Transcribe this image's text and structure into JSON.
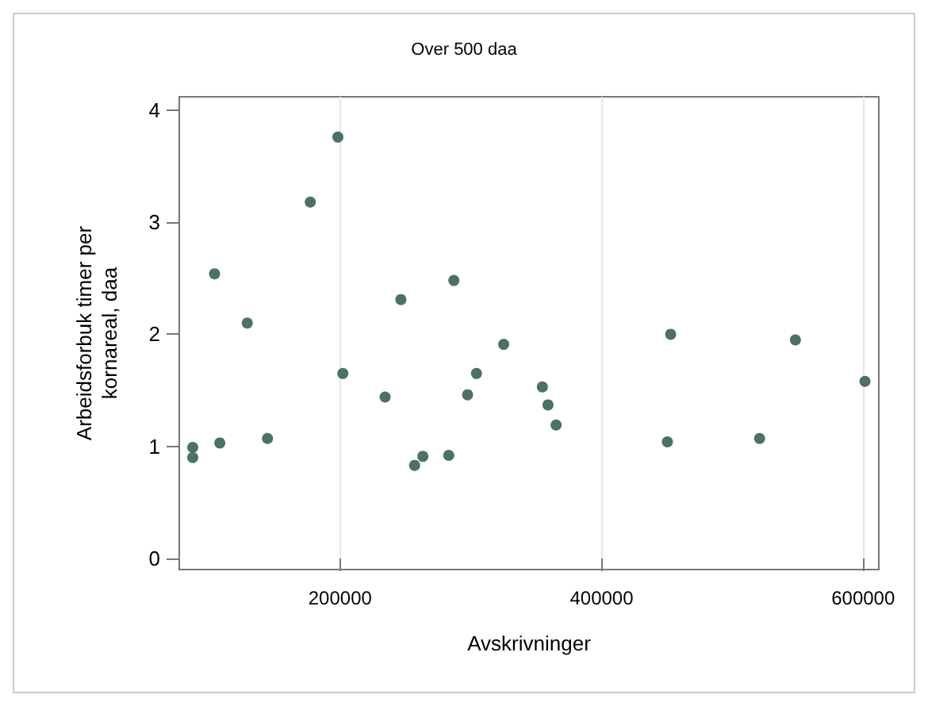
{
  "chart_data": {
    "type": "scatter",
    "title": "Over 500 daa",
    "xlabel": "Avskrivninger",
    "ylabel": "Arbeidsforbuk timer per\nkornareal, daa",
    "x": [
      87300,
      87300,
      104000,
      108000,
      129000,
      144500,
      177200,
      198300,
      202100,
      234400,
      246500,
      257000,
      263300,
      283100,
      287000,
      297500,
      304300,
      325100,
      354700,
      359000,
      365200,
      452800,
      450300,
      520800,
      548200,
      601400
    ],
    "series": [
      {
        "color": "#4a7360",
        "values": [
          0.99,
          0.9,
          2.54,
          1.03,
          2.1,
          1.07,
          3.18,
          3.76,
          1.65,
          1.44,
          2.31,
          0.83,
          0.91,
          0.92,
          2.48,
          1.46,
          1.65,
          1.91,
          1.53,
          1.37,
          1.19,
          2.0,
          1.04,
          1.07,
          1.95,
          1.58
        ]
      }
    ],
    "xlim": [
      77000,
      612000
    ],
    "xticks": [
      200000,
      400000,
      600000
    ],
    "ylim": [
      -0.1,
      4.12
    ],
    "yticks": [
      0,
      1,
      2,
      3,
      4
    ],
    "grid": "x",
    "marker": "circle"
  }
}
